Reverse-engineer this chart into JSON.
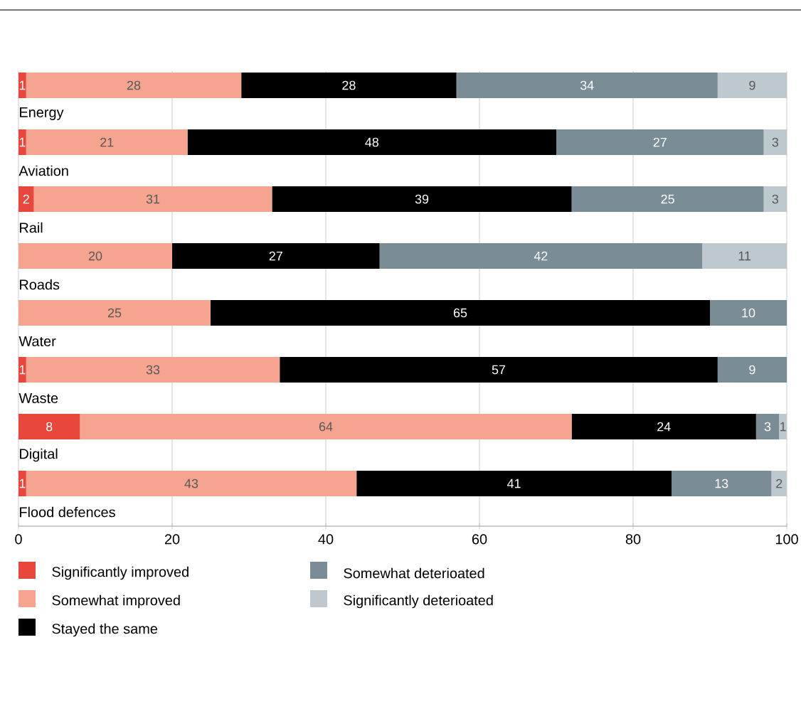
{
  "chart_data": {
    "type": "bar",
    "orientation": "horizontal",
    "stacked": true,
    "data_labels": true,
    "grid": "x",
    "legend": "bottom",
    "categories": [
      "Energy",
      "Aviation",
      "Rail",
      "Roads",
      "Water",
      "Waste",
      "Digital",
      "Flood defences"
    ],
    "xlim": [
      0,
      100
    ],
    "xticks": [
      0,
      20,
      40,
      60,
      80,
      100
    ],
    "series": [
      {
        "name": "Significantly improved",
        "color": "#e8473e",
        "values": [
          1,
          1,
          2,
          null,
          null,
          1,
          8,
          1
        ]
      },
      {
        "name": "Somewhat improved",
        "color": "#f4a48f",
        "values": [
          28,
          21,
          31,
          20,
          25,
          33,
          64,
          43
        ]
      },
      {
        "name": "Stayed the same",
        "color": "#000000",
        "values": [
          28,
          48,
          39,
          27,
          65,
          57,
          24,
          41
        ]
      },
      {
        "name": "Somewhat deterioated",
        "color": "#7a8c96",
        "values": [
          34,
          27,
          25,
          42,
          10,
          9,
          3,
          13
        ]
      },
      {
        "name": "Significantly deterioated",
        "color": "#bdc8cf",
        "values": [
          9,
          3,
          3,
          11,
          null,
          null,
          1,
          2
        ]
      }
    ]
  }
}
